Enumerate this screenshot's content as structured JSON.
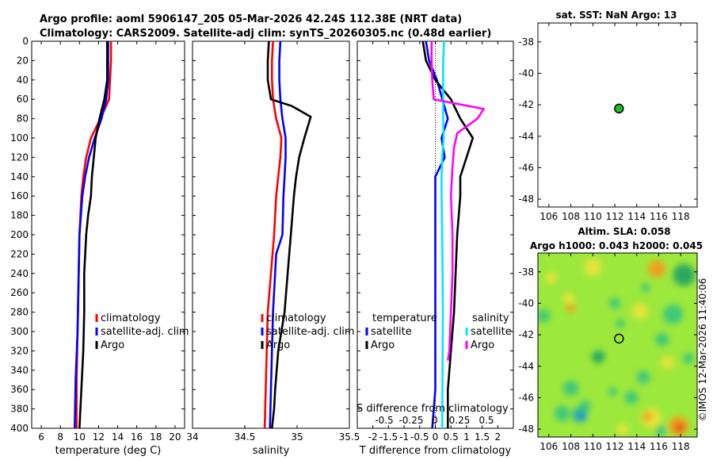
{
  "title_line1": "Argo profile: aoml 5906147_205 05-Mar-2026 42.24S 112.38E (NRT data)",
  "title_line2": "Climatology: CARS2009. Satellite-adj clim: synTS_20260305.nc (0.48d earlier)",
  "right_top_title": "sat. SST: NaN Argo: 13",
  "altim_title_1": "Altim. SLA: 0.058",
  "altim_title_2": "Argo h1000: 0.043 h2000: 0.045",
  "credit": "©IMOS 12-Mar-2026 11:40:06",
  "colors": {
    "climatology": "#ff0000",
    "satellite": "#0000ff",
    "argo": "#000000",
    "sal_sat": "#00e5ff",
    "sal_argo": "#ff00ff",
    "marker": "#22bb22"
  },
  "chart_data": [
    {
      "type": "line",
      "id": "temperature",
      "xlabel": "temperature (deg C)",
      "xlim": [
        5,
        21
      ],
      "xticks": [
        6,
        8,
        10,
        12,
        14,
        16,
        18,
        20
      ],
      "ylim": [
        0,
        400
      ],
      "yticks": [
        0,
        20,
        40,
        60,
        80,
        100,
        120,
        140,
        160,
        180,
        200,
        220,
        240,
        260,
        280,
        300,
        320,
        340,
        360,
        380,
        400
      ],
      "legend": [
        "climatology",
        "satellite-adj. clim",
        "Argo"
      ],
      "legend_position": "lower-right",
      "series": [
        {
          "name": "climatology",
          "color": "#ff0000",
          "x": [
            13.3,
            13.3,
            13.2,
            13.1,
            12.2,
            11.2,
            10.7,
            10.4,
            10.2,
            10.0,
            9.9,
            9.8,
            9.7,
            9.7
          ],
          "y": [
            0,
            20,
            40,
            60,
            80,
            100,
            120,
            140,
            160,
            200,
            250,
            300,
            350,
            400
          ]
        },
        {
          "name": "satellite-adj. clim",
          "color": "#0000ff",
          "x": [
            13.0,
            13.0,
            13.0,
            12.8,
            12.3,
            11.6,
            11.0,
            10.6,
            10.3,
            10.0,
            9.9,
            9.8,
            9.6,
            9.5
          ],
          "y": [
            0,
            20,
            40,
            60,
            80,
            100,
            120,
            140,
            160,
            200,
            250,
            300,
            350,
            400
          ]
        },
        {
          "name": "Argo",
          "color": "#000000",
          "x": [
            12.9,
            12.9,
            12.9,
            12.6,
            12.1,
            11.7,
            11.5,
            11.3,
            11.2,
            10.9,
            10.7,
            10.5,
            10.5,
            10.4,
            10.2,
            10.1,
            10.0
          ],
          "y": [
            0,
            20,
            40,
            60,
            80,
            100,
            120,
            140,
            160,
            180,
            200,
            240,
            280,
            320,
            360,
            380,
            400
          ]
        }
      ]
    },
    {
      "type": "line",
      "id": "salinity",
      "xlabel": "salinity",
      "xlim": [
        34,
        35.5
      ],
      "xticks": [
        34,
        34.5,
        35,
        35.5
      ],
      "xticklabels": [
        "34",
        "34.5",
        "35",
        "35.5"
      ],
      "ylim": [
        0,
        400
      ],
      "legend": [
        "climatology",
        "satellite-adj. clim",
        "Argo"
      ],
      "legend_position": "lower-right",
      "series": [
        {
          "name": "climatology",
          "color": "#ff0000",
          "x": [
            34.77,
            34.76,
            34.76,
            34.77,
            34.8,
            34.85,
            34.84,
            34.82,
            34.8,
            34.78,
            34.75,
            34.72,
            34.71,
            34.7,
            34.69
          ],
          "y": [
            0,
            20,
            40,
            60,
            80,
            100,
            120,
            140,
            160,
            200,
            240,
            280,
            320,
            360,
            400
          ]
        },
        {
          "name": "satellite-adj. clim",
          "color": "#0000ff",
          "x": [
            34.84,
            34.83,
            34.83,
            34.84,
            34.86,
            34.89,
            34.89,
            34.88,
            34.87,
            34.86,
            34.8,
            34.77,
            34.76,
            34.75,
            34.74
          ],
          "y": [
            0,
            20,
            40,
            60,
            80,
            100,
            120,
            140,
            160,
            200,
            220,
            280,
            320,
            360,
            400
          ]
        },
        {
          "name": "Argo",
          "color": "#000000",
          "x": [
            34.73,
            34.72,
            34.72,
            34.75,
            34.95,
            35.13,
            35.07,
            35.02,
            34.99,
            34.97,
            34.94,
            34.91,
            34.88,
            34.82,
            34.79,
            34.78,
            34.77,
            34.76
          ],
          "y": [
            0,
            20,
            40,
            60,
            67,
            78,
            100,
            120,
            140,
            160,
            200,
            240,
            280,
            320,
            360,
            380,
            390,
            400
          ]
        }
      ]
    },
    {
      "type": "line",
      "id": "difference",
      "xlabel": "T difference from climatology",
      "xlabel_top": "S difference from climatology",
      "xlim": [
        -2.5,
        2.5
      ],
      "xticks": [
        -2,
        -1.5,
        -1,
        -0.5,
        0,
        0.5,
        1,
        1.5,
        2
      ],
      "xticklabels": [
        "-2",
        "-1.5",
        "-1",
        "-0.5",
        "0",
        "0.5",
        "1",
        "1.5",
        "2"
      ],
      "sticks": [
        -0.5,
        -0.25,
        0,
        0.25,
        0.5
      ],
      "sticklabels": [
        "-0.5",
        "-0.25",
        "0",
        "0.25",
        "0.5"
      ],
      "ylim": [
        0,
        400
      ],
      "legend_left_title": "temperature",
      "legend_left": [
        "satellite",
        "Argo"
      ],
      "legend_right_title": "salinity",
      "legend_right": [
        "satellite",
        "Argo"
      ],
      "series": [
        {
          "name": "T satellite",
          "color": "#0000ff",
          "x": [
            -0.3,
            -0.2,
            0.05,
            0.4,
            0.2,
            0.3,
            0.0,
            0.0,
            0.0,
            0.0,
            0.0,
            0.0,
            -0.1
          ],
          "y": [
            0,
            20,
            40,
            80,
            100,
            120,
            140,
            160,
            200,
            260,
            320,
            360,
            400
          ]
        },
        {
          "name": "T Argo",
          "color": "#000000",
          "x": [
            -0.4,
            -0.3,
            0.0,
            0.5,
            0.8,
            1.2,
            1.0,
            0.8,
            0.8,
            0.7,
            0.6,
            0.5,
            0.4,
            0.4
          ],
          "y": [
            0,
            20,
            40,
            60,
            80,
            100,
            120,
            140,
            160,
            200,
            280,
            320,
            360,
            400
          ]
        },
        {
          "name": "S satellite",
          "color": "#00e5ff",
          "x": [
            0.28,
            0.25,
            0.25,
            0.25,
            0.25,
            0.27,
            0.22,
            0.2,
            0.2,
            0.22,
            0.24,
            0.23,
            0.22
          ],
          "y": [
            0,
            20,
            40,
            60,
            80,
            100,
            120,
            140,
            160,
            200,
            280,
            340,
            400
          ]
        },
        {
          "name": "S Argo",
          "color": "#ff00ff",
          "x": [
            -0.12,
            -0.12,
            -0.1,
            -0.05,
            1.55,
            1.35,
            0.7,
            0.6,
            0.55,
            0.5,
            0.55,
            0.55,
            0.5,
            0.45,
            0.4
          ],
          "y": [
            0,
            20,
            40,
            60,
            70,
            80,
            95,
            110,
            130,
            160,
            200,
            240,
            280,
            320,
            330
          ]
        }
      ]
    },
    {
      "type": "scatter",
      "id": "sst_map",
      "title": "sat. SST: NaN Argo: 13",
      "xlim": [
        105,
        119.5
      ],
      "xticks": [
        106,
        108,
        110,
        112,
        114,
        116,
        118
      ],
      "ylim": [
        -48.5,
        -36.8
      ],
      "yticks": [
        -38,
        -40,
        -42,
        -44,
        -46,
        -48
      ],
      "points": [
        {
          "x": 112.38,
          "y": -42.24
        }
      ]
    },
    {
      "type": "heatmap",
      "id": "altimetry_map",
      "title": "Altim. SLA: 0.058",
      "subtitle": "Argo h1000: 0.043 h2000: 0.045",
      "xlim": [
        105,
        119.5
      ],
      "xticks": [
        106,
        108,
        110,
        112,
        114,
        116,
        118
      ],
      "ylim": [
        -48.5,
        -36.8
      ],
      "yticks": [
        -38,
        -40,
        -42,
        -44,
        -46,
        -48
      ],
      "points": [
        {
          "x": 112.38,
          "y": -42.24
        }
      ],
      "background": "#9de83c",
      "blobs": [
        {
          "x": 105.5,
          "y": -40.8,
          "r": 0.6,
          "color": "#3fc77a"
        },
        {
          "x": 106.2,
          "y": -38.4,
          "r": 0.5,
          "color": "#e8e43a"
        },
        {
          "x": 108.0,
          "y": -40.3,
          "r": 0.4,
          "color": "#f0a020"
        },
        {
          "x": 107.8,
          "y": -39.7,
          "r": 0.5,
          "color": "#e8e43a"
        },
        {
          "x": 110.0,
          "y": -37.7,
          "r": 0.8,
          "color": "#e8e43a"
        },
        {
          "x": 110.5,
          "y": -43.4,
          "r": 0.6,
          "color": "#2fa860"
        },
        {
          "x": 108.0,
          "y": -45.4,
          "r": 0.7,
          "color": "#3fc77a"
        },
        {
          "x": 109.3,
          "y": -46.5,
          "r": 0.5,
          "color": "#3fc77a"
        },
        {
          "x": 107.2,
          "y": -47.0,
          "r": 0.7,
          "color": "#3fc77a"
        },
        {
          "x": 108.8,
          "y": -47.1,
          "r": 0.7,
          "color": "#2fb5a0"
        },
        {
          "x": 109.0,
          "y": -47.2,
          "r": 0.4,
          "color": "#1e98c8"
        },
        {
          "x": 112.0,
          "y": -40.0,
          "r": 0.5,
          "color": "#3fc77a"
        },
        {
          "x": 112.5,
          "y": -41.3,
          "r": 0.4,
          "color": "#3fc77a"
        },
        {
          "x": 114.3,
          "y": -40.5,
          "r": 0.7,
          "color": "#e8e43a"
        },
        {
          "x": 115.8,
          "y": -37.8,
          "r": 0.8,
          "color": "#f0a020"
        },
        {
          "x": 114.8,
          "y": -39.0,
          "r": 0.4,
          "color": "#3fc77a"
        },
        {
          "x": 118.3,
          "y": -38.2,
          "r": 1.0,
          "color": "#2fa860"
        },
        {
          "x": 117.3,
          "y": -40.7,
          "r": 0.9,
          "color": "#3fc77a"
        },
        {
          "x": 116.3,
          "y": -42.3,
          "r": 0.6,
          "color": "#3fc77a"
        },
        {
          "x": 116.8,
          "y": -43.8,
          "r": 0.6,
          "color": "#e8e43a"
        },
        {
          "x": 114.6,
          "y": -44.7,
          "r": 0.6,
          "color": "#3fc77a"
        },
        {
          "x": 118.7,
          "y": -43.5,
          "r": 0.5,
          "color": "#3fc77a"
        },
        {
          "x": 113.5,
          "y": -46.0,
          "r": 0.6,
          "color": "#3fc77a"
        },
        {
          "x": 111.8,
          "y": -45.6,
          "r": 0.4,
          "color": "#3fc77a"
        },
        {
          "x": 115.3,
          "y": -47.3,
          "r": 0.9,
          "color": "#e8e43a"
        },
        {
          "x": 115.0,
          "y": -47.2,
          "r": 0.45,
          "color": "#f0a020"
        },
        {
          "x": 117.8,
          "y": -47.8,
          "r": 0.9,
          "color": "#f0a020"
        },
        {
          "x": 117.9,
          "y": -47.9,
          "r": 0.45,
          "color": "#e25a10"
        },
        {
          "x": 112.7,
          "y": -48.0,
          "r": 0.5,
          "color": "#e8e43a"
        },
        {
          "x": 116.2,
          "y": -48.1,
          "r": 0.5,
          "color": "#3fc77a"
        }
      ]
    }
  ]
}
